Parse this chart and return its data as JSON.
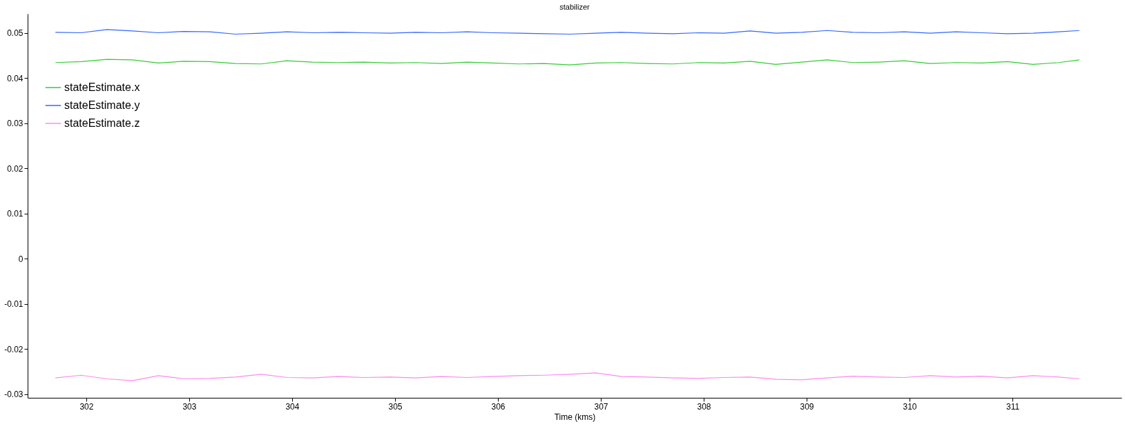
{
  "chart_data": {
    "type": "line",
    "title": "stabilizer",
    "xlabel": "Time (kms)",
    "x": [
      301.7,
      301.95,
      302.2,
      302.45,
      302.7,
      302.95,
      303.2,
      303.45,
      303.7,
      303.95,
      304.2,
      304.45,
      304.7,
      304.95,
      305.2,
      305.45,
      305.7,
      305.95,
      306.2,
      306.45,
      306.7,
      306.95,
      307.2,
      307.45,
      307.7,
      307.95,
      308.2,
      308.45,
      308.7,
      308.95,
      309.2,
      309.45,
      309.7,
      309.95,
      310.2,
      310.45,
      310.7,
      310.95,
      311.2,
      311.45,
      311.65
    ],
    "series": [
      {
        "name": "stateEstimate.x",
        "color": "#33cc33",
        "values": [
          0.0434,
          0.0436,
          0.0441,
          0.044,
          0.0433,
          0.0437,
          0.0436,
          0.0432,
          0.0431,
          0.0438,
          0.0435,
          0.0434,
          0.0435,
          0.0433,
          0.0434,
          0.0432,
          0.0435,
          0.0433,
          0.0431,
          0.0432,
          0.0429,
          0.0433,
          0.0434,
          0.0432,
          0.0431,
          0.0434,
          0.0433,
          0.0437,
          0.043,
          0.0435,
          0.044,
          0.0434,
          0.0435,
          0.0438,
          0.0432,
          0.0434,
          0.0433,
          0.0436,
          0.043,
          0.0434,
          0.044
        ]
      },
      {
        "name": "stateEstimate.y",
        "color": "#3366ff",
        "values": [
          0.0501,
          0.05,
          0.0507,
          0.0504,
          0.05,
          0.0503,
          0.0502,
          0.0497,
          0.0499,
          0.0502,
          0.05,
          0.0501,
          0.05,
          0.0499,
          0.0501,
          0.05,
          0.0502,
          0.05,
          0.0499,
          0.0498,
          0.0497,
          0.0499,
          0.0501,
          0.0499,
          0.0498,
          0.05,
          0.0499,
          0.0504,
          0.0499,
          0.0501,
          0.0505,
          0.0501,
          0.05,
          0.0502,
          0.0499,
          0.0502,
          0.05,
          0.0498,
          0.0499,
          0.0502,
          0.0505
        ]
      },
      {
        "name": "stateEstimate.z",
        "color": "#ff88ee",
        "values": [
          -0.0264,
          -0.0258,
          -0.0266,
          -0.027,
          -0.0259,
          -0.0266,
          -0.0265,
          -0.0262,
          -0.0256,
          -0.0263,
          -0.0264,
          -0.0261,
          -0.0263,
          -0.0262,
          -0.0264,
          -0.0261,
          -0.0263,
          -0.0261,
          -0.0259,
          -0.0258,
          -0.0256,
          -0.0253,
          -0.0261,
          -0.0262,
          -0.0264,
          -0.0265,
          -0.0263,
          -0.0262,
          -0.0267,
          -0.0268,
          -0.0264,
          -0.026,
          -0.0262,
          -0.0263,
          -0.0259,
          -0.0262,
          -0.026,
          -0.0264,
          -0.0259,
          -0.0262,
          -0.0266
        ]
      }
    ],
    "xlim": [
      301.43,
      312.06
    ],
    "xticks": [
      302,
      303,
      304,
      305,
      306,
      307,
      308,
      309,
      310,
      311
    ],
    "ylim": [
      -0.0308,
      0.0542
    ],
    "yticks": [
      -0.03,
      -0.02,
      -0.01,
      0,
      0.01,
      0.02,
      0.03,
      0.04,
      0.05
    ],
    "grid": false,
    "legend": "top left",
    "line_style": "solid",
    "marker": "none"
  }
}
